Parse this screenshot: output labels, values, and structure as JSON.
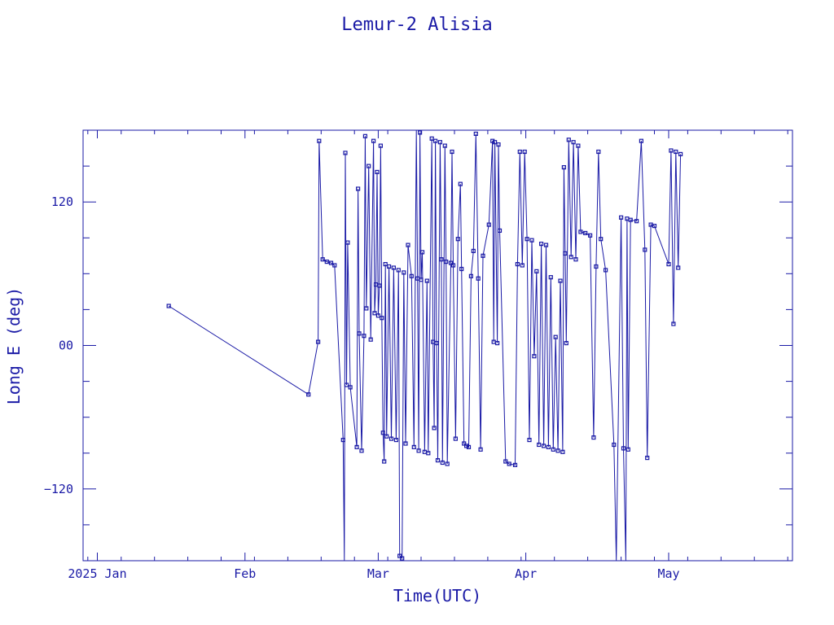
{
  "chart_data": {
    "type": "line",
    "title": "Lemur-2 Alisia",
    "xlabel": "Time(UTC)",
    "ylabel": "Long E (deg)",
    "xlim": [
      "2024-12-29",
      "2025-05-27"
    ],
    "ylim": [
      -180,
      180
    ],
    "x_tick_labels": [
      {
        "date": "2025-01-01",
        "label": "2025 Jan"
      },
      {
        "date": "2025-02-01",
        "label": "Feb"
      },
      {
        "date": "2025-03-01",
        "label": "Mar"
      },
      {
        "date": "2025-04-01",
        "label": "Apr"
      },
      {
        "date": "2025-05-01",
        "label": "May"
      }
    ],
    "y_ticks": [
      -120,
      0,
      120
    ],
    "y_tick_labels": [
      "−120",
      "00",
      "120"
    ],
    "color": "#1a1aa6",
    "grid": false,
    "legend": false,
    "series": [
      {
        "points": [
          [
            "2025-01-16T00",
            33
          ],
          [
            "2025-02-14T08",
            -41
          ],
          [
            "2025-02-16T09",
            3
          ],
          [
            "2025-02-16T14",
            171
          ],
          [
            "2025-02-17T08",
            72
          ],
          [
            "2025-02-18T05",
            70
          ],
          [
            "2025-02-19T02",
            69
          ],
          [
            "2025-02-19T20",
            67
          ],
          [
            "2025-02-21T15",
            -79
          ],
          [
            "2025-02-21T21",
            -180
          ],
          [
            "2025-02-22T02",
            161
          ],
          [
            "2025-02-22T08",
            -33
          ],
          [
            "2025-02-22T14",
            86
          ],
          [
            "2025-02-23T03",
            -35
          ],
          [
            "2025-02-24T12",
            -85
          ],
          [
            "2025-02-24T18",
            131
          ],
          [
            "2025-02-25T00",
            10
          ],
          [
            "2025-02-25T12",
            -88
          ],
          [
            "2025-02-26T00",
            8
          ],
          [
            "2025-02-26T06",
            175
          ],
          [
            "2025-02-26T12",
            31
          ],
          [
            "2025-02-27T00",
            150
          ],
          [
            "2025-02-27T10",
            5
          ],
          [
            "2025-02-28T00",
            171
          ],
          [
            "2025-02-28T06",
            27
          ],
          [
            "2025-02-28T12",
            51
          ],
          [
            "2025-02-28T18",
            145
          ],
          [
            "2025-03-01T00",
            25
          ],
          [
            "2025-03-01T06",
            50
          ],
          [
            "2025-03-01T12",
            167
          ],
          [
            "2025-03-01T18",
            23
          ],
          [
            "2025-03-02T00",
            -73
          ],
          [
            "2025-03-02T06",
            -97
          ],
          [
            "2025-03-02T12",
            68
          ],
          [
            "2025-03-02T18",
            -76
          ],
          [
            "2025-03-03T06",
            66
          ],
          [
            "2025-03-03T18",
            -78
          ],
          [
            "2025-03-04T06",
            65
          ],
          [
            "2025-03-04T18",
            -79
          ],
          [
            "2025-03-05T06",
            63
          ],
          [
            "2025-03-05T12",
            -176
          ],
          [
            "2025-03-06T00",
            -178
          ],
          [
            "2025-03-06T09",
            61
          ],
          [
            "2025-03-06T18",
            -82
          ],
          [
            "2025-03-07T06",
            84
          ],
          [
            "2025-03-08T00",
            58
          ],
          [
            "2025-03-08T12",
            -85
          ],
          [
            "2025-03-09T00",
            180
          ],
          [
            "2025-03-09T06",
            56
          ],
          [
            "2025-03-09T12",
            -88
          ],
          [
            "2025-03-09T18",
            178
          ],
          [
            "2025-03-10T00",
            55
          ],
          [
            "2025-03-10T06",
            78
          ],
          [
            "2025-03-10T18",
            -89
          ],
          [
            "2025-03-11T06",
            54
          ],
          [
            "2025-03-11T12",
            -90
          ],
          [
            "2025-03-12T06",
            173
          ],
          [
            "2025-03-12T12",
            3
          ],
          [
            "2025-03-12T18",
            -69
          ],
          [
            "2025-03-13T00",
            171
          ],
          [
            "2025-03-13T06",
            2
          ],
          [
            "2025-03-13T12",
            -96
          ],
          [
            "2025-03-14T00",
            170
          ],
          [
            "2025-03-14T06",
            72
          ],
          [
            "2025-03-14T12",
            -98
          ],
          [
            "2025-03-15T00",
            167
          ],
          [
            "2025-03-15T06",
            70
          ],
          [
            "2025-03-15T12",
            -99
          ],
          [
            "2025-03-16T06",
            69
          ],
          [
            "2025-03-16T12",
            162
          ],
          [
            "2025-03-16T18",
            67
          ],
          [
            "2025-03-17T06",
            -78
          ],
          [
            "2025-03-17T18",
            89
          ],
          [
            "2025-03-18T06",
            135
          ],
          [
            "2025-03-18T12",
            64
          ],
          [
            "2025-03-19T00",
            -82
          ],
          [
            "2025-03-19T12",
            -84
          ],
          [
            "2025-03-20T00",
            -85
          ],
          [
            "2025-03-20T12",
            58
          ],
          [
            "2025-03-21T00",
            79
          ],
          [
            "2025-03-21T12",
            177
          ],
          [
            "2025-03-22T00",
            56
          ],
          [
            "2025-03-22T12",
            -87
          ],
          [
            "2025-03-23T00",
            75
          ],
          [
            "2025-03-24T06",
            101
          ],
          [
            "2025-03-25T00",
            171
          ],
          [
            "2025-03-25T06",
            3
          ],
          [
            "2025-03-25T12",
            170
          ],
          [
            "2025-03-26T00",
            2
          ],
          [
            "2025-03-26T06",
            168
          ],
          [
            "2025-03-26T12",
            96
          ],
          [
            "2025-03-27T18",
            -97
          ],
          [
            "2025-03-28T12",
            -99
          ],
          [
            "2025-03-29T18",
            -100
          ],
          [
            "2025-03-30T06",
            68
          ],
          [
            "2025-03-30T18",
            162
          ],
          [
            "2025-03-31T06",
            67
          ],
          [
            "2025-03-31T18",
            162
          ],
          [
            "2025-04-01T06",
            89
          ],
          [
            "2025-04-01T18",
            -79
          ],
          [
            "2025-04-02T06",
            88
          ],
          [
            "2025-04-02T18",
            -9
          ],
          [
            "2025-04-03T06",
            62
          ],
          [
            "2025-04-03T18",
            -83
          ],
          [
            "2025-04-04T06",
            85
          ],
          [
            "2025-04-04T18",
            -84
          ],
          [
            "2025-04-05T06",
            84
          ],
          [
            "2025-04-05T18",
            -85
          ],
          [
            "2025-04-06T06",
            57
          ],
          [
            "2025-04-06T18",
            -87
          ],
          [
            "2025-04-07T06",
            7
          ],
          [
            "2025-04-07T18",
            -88
          ],
          [
            "2025-04-08T06",
            54
          ],
          [
            "2025-04-08T18",
            -89
          ],
          [
            "2025-04-09T00",
            149
          ],
          [
            "2025-04-09T06",
            77
          ],
          [
            "2025-04-09T12",
            2
          ],
          [
            "2025-04-10T00",
            172
          ],
          [
            "2025-04-10T12",
            74
          ],
          [
            "2025-04-11T00",
            170
          ],
          [
            "2025-04-11T12",
            72
          ],
          [
            "2025-04-12T00",
            167
          ],
          [
            "2025-04-12T12",
            95
          ],
          [
            "2025-04-13T12",
            94
          ],
          [
            "2025-04-14T12",
            92
          ],
          [
            "2025-04-15T06",
            -77
          ],
          [
            "2025-04-15T18",
            66
          ],
          [
            "2025-04-16T06",
            162
          ],
          [
            "2025-04-16T18",
            89
          ],
          [
            "2025-04-17T18",
            63
          ],
          [
            "2025-04-19T12",
            -83
          ],
          [
            "2025-04-20T00",
            -180
          ],
          [
            "2025-04-21T00",
            107
          ],
          [
            "2025-04-21T12",
            -86
          ],
          [
            "2025-04-22T00",
            -180
          ],
          [
            "2025-04-22T06",
            106
          ],
          [
            "2025-04-22T12",
            -87
          ],
          [
            "2025-04-23T00",
            105
          ],
          [
            "2025-04-24T06",
            104
          ],
          [
            "2025-04-25T06",
            171
          ],
          [
            "2025-04-26T00",
            80
          ],
          [
            "2025-04-26T12",
            -94
          ],
          [
            "2025-04-27T06",
            101
          ],
          [
            "2025-04-28T00",
            100
          ],
          [
            "2025-05-01T00",
            68
          ],
          [
            "2025-05-01T12",
            163
          ],
          [
            "2025-05-02T00",
            18
          ],
          [
            "2025-05-02T12",
            162
          ],
          [
            "2025-05-03T00",
            65
          ],
          [
            "2025-05-03T12",
            160
          ]
        ]
      }
    ]
  }
}
